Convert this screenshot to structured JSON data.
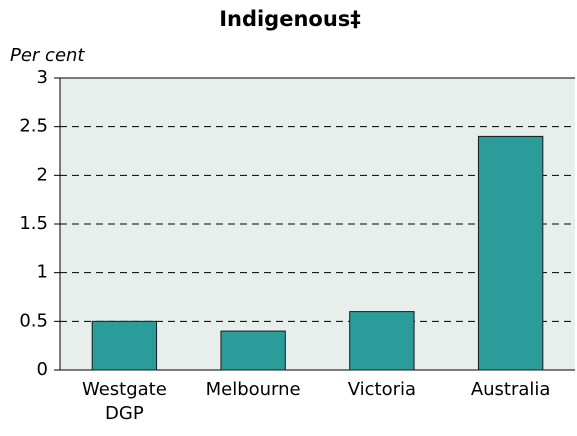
{
  "chart_data": {
    "type": "bar",
    "title": "Indigenous‡",
    "y_axis_label": "Per cent",
    "categories": [
      "Westgate DGP",
      "Melbourne",
      "Victoria",
      "Australia"
    ],
    "values": [
      0.5,
      0.4,
      0.6,
      2.4
    ],
    "color": "#2a9d9a",
    "ylim": [
      0,
      3
    ],
    "yticks": [
      0,
      0.5,
      1,
      1.5,
      2,
      2.5,
      3
    ],
    "grid": true
  }
}
